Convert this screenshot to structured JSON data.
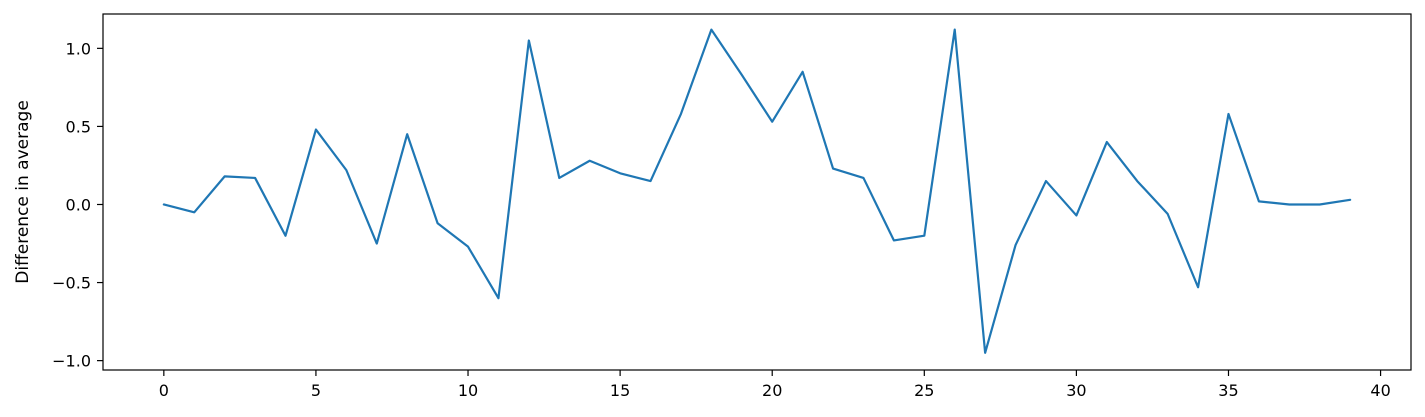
{
  "chart_data": {
    "type": "line",
    "title": "",
    "xlabel": "",
    "ylabel": "Difference in average",
    "xlim": [
      -2,
      41
    ],
    "ylim": [
      -1.06,
      1.22
    ],
    "xticks": [
      0,
      5,
      10,
      15,
      20,
      25,
      30,
      35,
      40
    ],
    "yticks": [
      -1.0,
      -0.5,
      0.0,
      0.5,
      1.0
    ],
    "ytick_labels": [
      "−1.0",
      "−0.5",
      "0.0",
      "0.5",
      "1.0"
    ],
    "grid": false,
    "line_color": "#1f77b4",
    "x": [
      0,
      1,
      2,
      3,
      4,
      5,
      6,
      7,
      8,
      9,
      10,
      11,
      12,
      13,
      14,
      15,
      16,
      17,
      18,
      19,
      20,
      21,
      22,
      23,
      24,
      25,
      26,
      27,
      28,
      29,
      30,
      31,
      32,
      33,
      34,
      35,
      36,
      37,
      38,
      39
    ],
    "values": [
      0.0,
      -0.05,
      0.18,
      0.17,
      -0.2,
      0.48,
      0.22,
      -0.25,
      0.45,
      -0.12,
      -0.27,
      -0.6,
      1.05,
      0.17,
      0.28,
      0.2,
      0.15,
      0.58,
      1.12,
      0.83,
      0.53,
      0.85,
      0.23,
      0.17,
      -0.23,
      -0.2,
      1.12,
      -0.95,
      -0.26,
      0.15,
      -0.07,
      0.4,
      0.15,
      -0.06,
      -0.53,
      0.58,
      0.02,
      0.0,
      0.0,
      0.03
    ]
  }
}
